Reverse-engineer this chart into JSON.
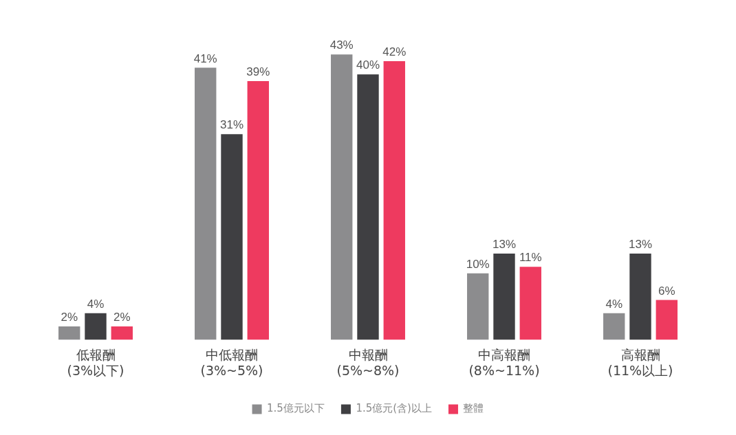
{
  "chart_data": {
    "type": "bar",
    "categories": [
      "低報酬\n(3%以下)",
      "中低報酬\n(3%~5%)",
      "中報酬\n(5%~8%)",
      "中高報酬\n(8%~11%)",
      "高報酬\n(11%以上)"
    ],
    "series": [
      {
        "name": "1.5億元以下",
        "color": "#8c8c8e",
        "values": [
          2,
          41,
          43,
          10,
          4
        ],
        "value_labels": [
          "2%",
          "41%",
          "43%",
          "10%",
          "4%"
        ]
      },
      {
        "name": "1.5億元(含)以上",
        "color": "#3f3f42",
        "values": [
          4,
          31,
          40,
          13,
          13
        ],
        "value_labels": [
          "4%",
          "31%",
          "40%",
          "13%",
          "13%"
        ]
      },
      {
        "name": "整體",
        "color": "#ee3a5f",
        "values": [
          2,
          39,
          42,
          11,
          6
        ],
        "value_labels": [
          "2%",
          "39%",
          "42%",
          "11%",
          "6%"
        ]
      }
    ],
    "legend": "bottom",
    "grid": false,
    "tick_labels": "x"
  }
}
